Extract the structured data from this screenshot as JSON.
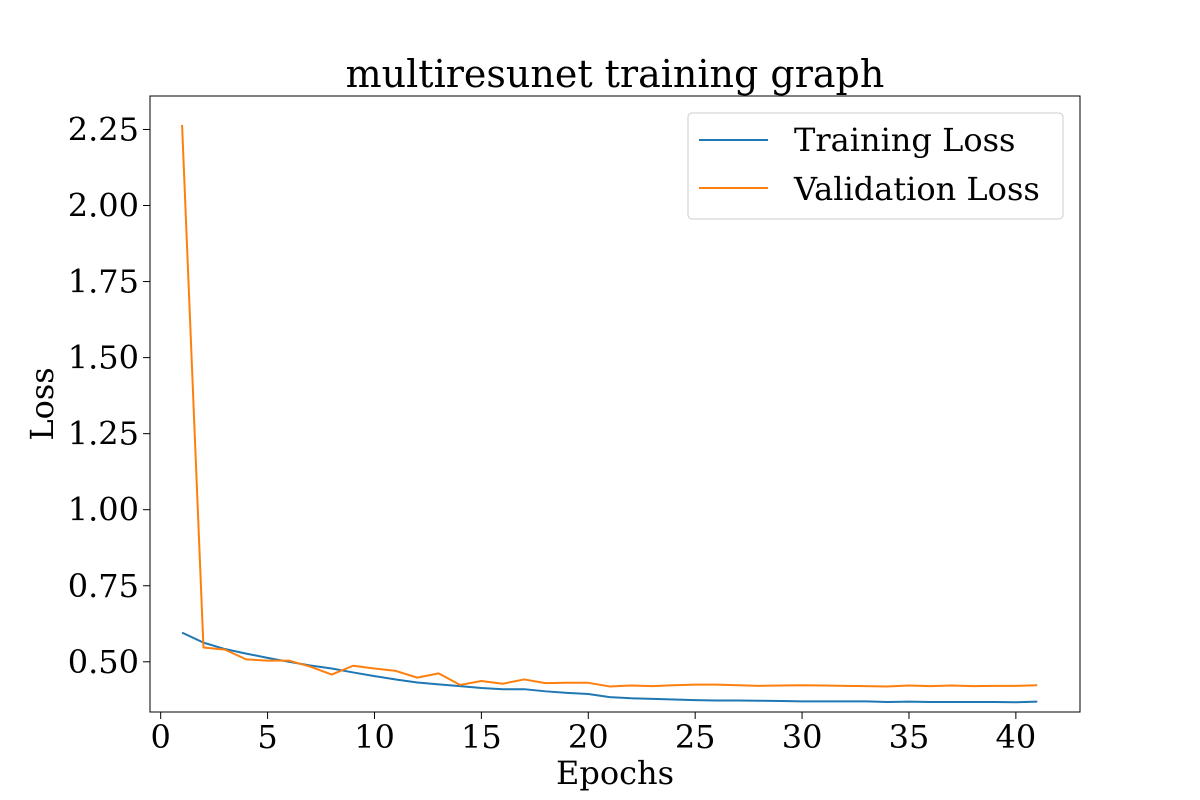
{
  "chart_data": {
    "type": "line",
    "title": "multiresunet training graph",
    "xlabel": "Epochs",
    "ylabel": "Loss",
    "xlim": [
      -0.5,
      43.0
    ],
    "ylim": [
      0.335,
      2.36
    ],
    "xticks": [
      0,
      5,
      10,
      15,
      20,
      25,
      30,
      35,
      40
    ],
    "yticks": [
      0.5,
      0.75,
      1.0,
      1.25,
      1.5,
      1.75,
      2.0,
      2.25
    ],
    "ytick_labels": [
      "0.50",
      "0.75",
      "1.00",
      "1.25",
      "1.50",
      "1.75",
      "2.00",
      "2.25"
    ],
    "legend_position": "top-right",
    "grid": false,
    "x": [
      1,
      2,
      3,
      4,
      5,
      6,
      7,
      8,
      9,
      10,
      11,
      12,
      13,
      14,
      15,
      16,
      17,
      18,
      19,
      20,
      21,
      22,
      23,
      24,
      25,
      26,
      27,
      28,
      29,
      30,
      31,
      32,
      33,
      34,
      35,
      36,
      37,
      38,
      39,
      40,
      41
    ],
    "series": [
      {
        "name": "Training Loss",
        "color": "#1f77b4",
        "values": [
          0.596,
          0.563,
          0.542,
          0.527,
          0.513,
          0.5,
          0.488,
          0.478,
          0.465,
          0.453,
          0.442,
          0.432,
          0.426,
          0.42,
          0.414,
          0.41,
          0.41,
          0.403,
          0.398,
          0.394,
          0.384,
          0.38,
          0.378,
          0.376,
          0.374,
          0.373,
          0.373,
          0.372,
          0.371,
          0.37,
          0.37,
          0.37,
          0.37,
          0.368,
          0.369,
          0.368,
          0.368,
          0.368,
          0.368,
          0.367,
          0.369
        ]
      },
      {
        "name": "Validation Loss",
        "color": "#ff7f0e",
        "values": [
          2.265,
          0.547,
          0.54,
          0.508,
          0.504,
          0.504,
          0.484,
          0.458,
          0.487,
          0.478,
          0.47,
          0.448,
          0.462,
          0.424,
          0.437,
          0.428,
          0.442,
          0.43,
          0.431,
          0.431,
          0.419,
          0.422,
          0.42,
          0.423,
          0.425,
          0.425,
          0.423,
          0.421,
          0.422,
          0.423,
          0.422,
          0.421,
          0.42,
          0.419,
          0.422,
          0.42,
          0.422,
          0.42,
          0.421,
          0.421,
          0.423
        ]
      }
    ]
  }
}
